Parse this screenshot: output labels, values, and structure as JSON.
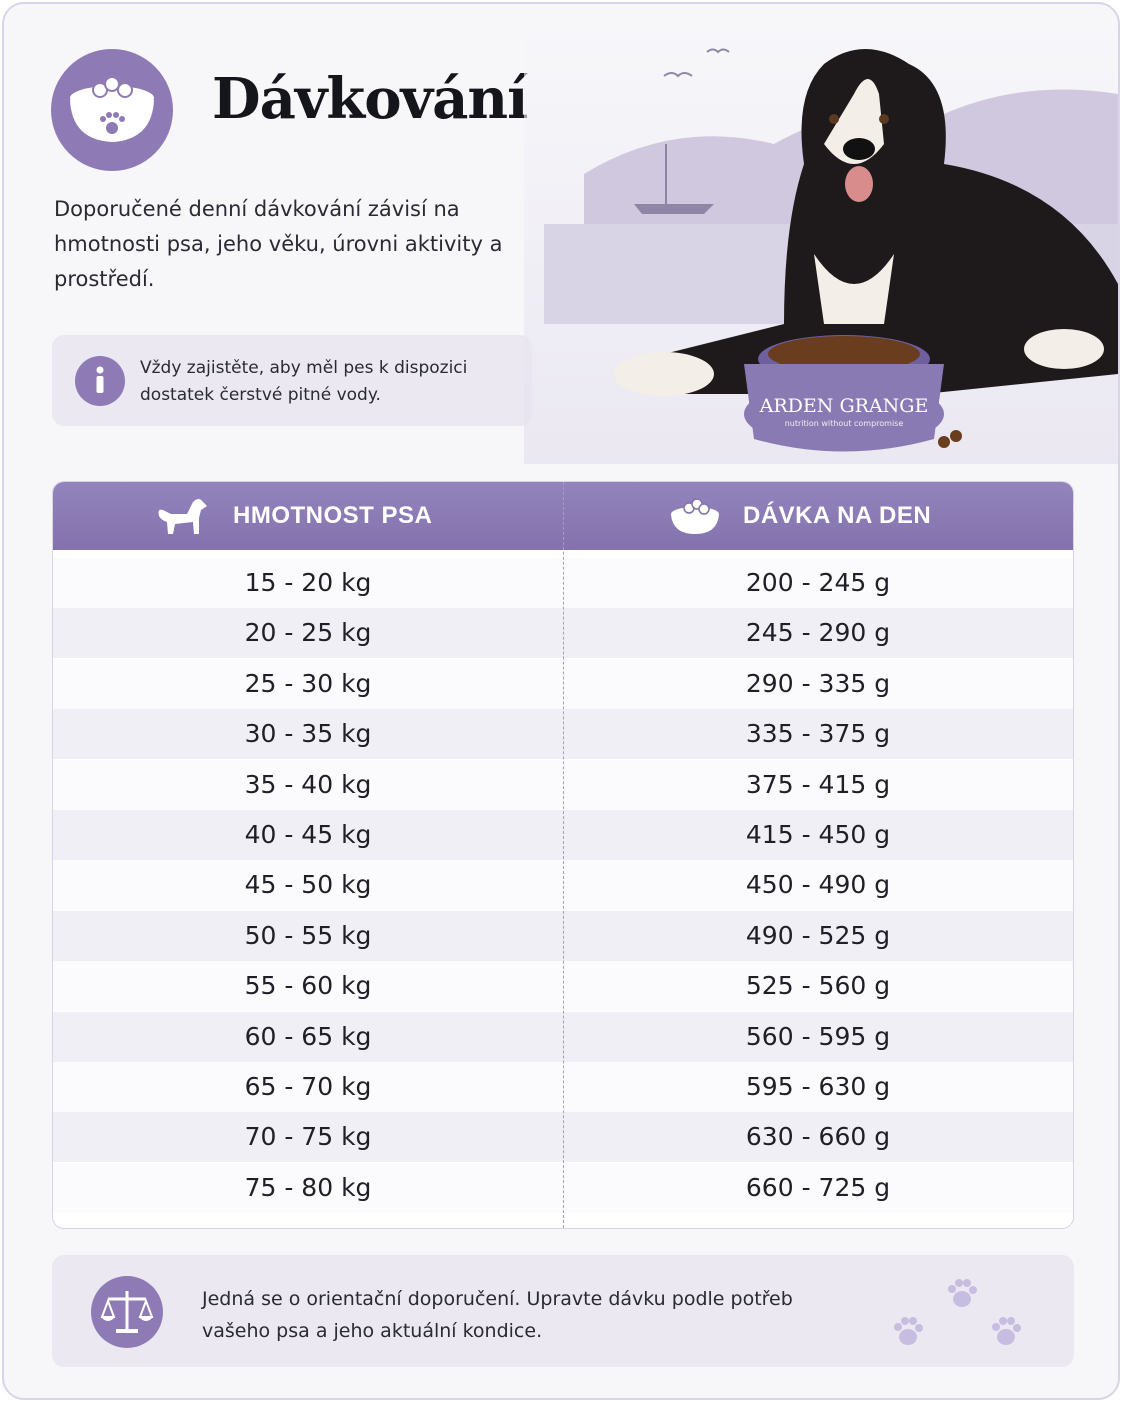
{
  "header": {
    "title": "Dávkování",
    "intro": "Doporučené denní dávkování závisí na hmotnosti psa, jeho věku, úrovni aktivity a prostředí."
  },
  "note": "Vždy zajistěte, aby měl pes k dispozici dostatek čerstvé pitné vody.",
  "image": {
    "brand": "ARDEN GRANGE",
    "tagline": "nutrition without compromise"
  },
  "table": {
    "headers": [
      "HMOTNOST PSA",
      "DÁVKA NA DEN"
    ],
    "rows": [
      [
        "15 - 20 kg",
        "200 - 245 g"
      ],
      [
        "20 - 25 kg",
        "245 - 290 g"
      ],
      [
        "25 - 30 kg",
        "290 - 335 g"
      ],
      [
        "30 - 35 kg",
        "335 - 375 g"
      ],
      [
        "35 - 40 kg",
        "375 - 415 g"
      ],
      [
        "40 - 45 kg",
        "415 - 450 g"
      ],
      [
        "45 - 50 kg",
        "450 - 490 g"
      ],
      [
        "50 - 55 kg",
        "490 - 525 g"
      ],
      [
        "55 - 60 kg",
        "525 - 560 g"
      ],
      [
        "60 - 65 kg",
        "560 - 595 g"
      ],
      [
        "65 - 70 kg",
        "595 - 630 g"
      ],
      [
        "70 - 75 kg",
        "630 - 660 g"
      ],
      [
        "75 - 80 kg",
        "660 - 725 g"
      ]
    ]
  },
  "footer": "Jedná se o orientační doporučení. Upravte dávku podle potřeb vašeho psa a jeho aktuální kondice."
}
